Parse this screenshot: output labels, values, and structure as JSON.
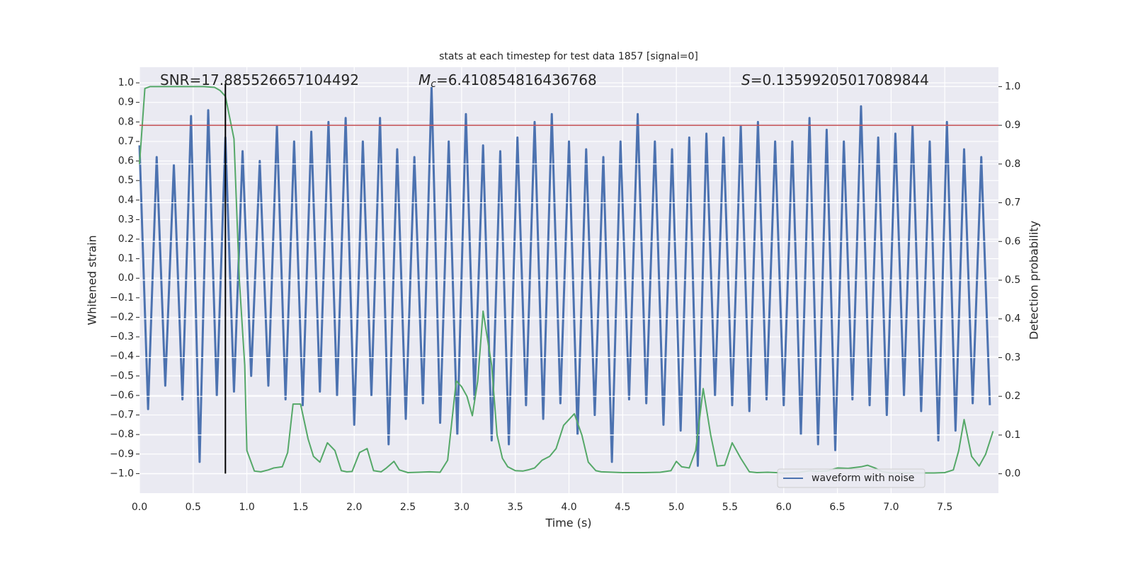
{
  "chart_data": {
    "type": "line",
    "title": "stats at each timestep for test data 1857 [signal=0]",
    "xlabel": "Time (s)",
    "ylabel": "Whitened strain",
    "y2label": "Detection probability",
    "annotations": [
      {
        "text": "SNR=17.885526657104492"
      },
      {
        "symbol": "M",
        "subscript": "c",
        "text": "=6.410854816436768"
      },
      {
        "symbol": "S",
        "text": "=0.13599205017089844"
      }
    ],
    "xlim": [
      0,
      8
    ],
    "ylim": [
      -1.1,
      1.08
    ],
    "y2lim": [
      -0.05,
      1.05
    ],
    "xticks": [
      {
        "value": 0,
        "label": "0.0"
      },
      0.5,
      {
        "value": 1,
        "label": "1.0"
      },
      1.5,
      {
        "value": 2,
        "label": "2.0"
      },
      2.5,
      {
        "value": 3,
        "label": "3.0"
      },
      3.5,
      {
        "value": 4,
        "label": "4.0"
      },
      4.5,
      {
        "value": 5,
        "label": "5.0"
      },
      5.5,
      {
        "value": 6,
        "label": "6.0"
      },
      6.5,
      {
        "value": 7,
        "label": "7.0"
      },
      7.5
    ],
    "yticks": [
      {
        "value": -1,
        "label": "−1.0"
      },
      {
        "value": -0.9,
        "label": "−0.9"
      },
      {
        "value": -0.8,
        "label": "−0.8"
      },
      {
        "value": -0.7,
        "label": "−0.7"
      },
      {
        "value": -0.6,
        "label": "−0.6"
      },
      {
        "value": -0.5,
        "label": "−0.5"
      },
      {
        "value": -0.4,
        "label": "−0.4"
      },
      {
        "value": -0.3,
        "label": "−0.3"
      },
      {
        "value": -0.2,
        "label": "−0.2"
      },
      {
        "value": -0.1,
        "label": "−0.1"
      },
      {
        "value": 0,
        "label": "0.0"
      },
      0.1,
      0.2,
      0.3,
      0.4,
      0.5,
      0.6,
      0.7,
      0.8,
      0.9,
      {
        "value": 1,
        "label": "1.0"
      }
    ],
    "y2ticks": [
      {
        "value": 0,
        "label": "0.0"
      },
      0.1,
      0.2,
      0.3,
      0.4,
      0.5,
      0.6,
      0.7,
      0.8,
      0.9,
      {
        "value": 1,
        "label": "1.0"
      }
    ],
    "grid": true,
    "legend": "lower right",
    "hlines": [
      {
        "axis": "y2",
        "value": 0.9,
        "color": "#c44e52"
      }
    ],
    "vlines": [
      {
        "value": 0.8,
        "color": "#000000"
      }
    ],
    "series": [
      {
        "name": "waveform with noise",
        "color": "#4c72b0",
        "x": [
          0,
          0.08,
          0.16,
          0.24,
          0.32,
          0.4,
          0.48,
          0.56,
          0.64,
          0.72,
          0.8,
          0.88,
          0.96,
          1.04,
          1.12,
          1.2,
          1.28,
          1.36,
          1.44,
          1.52,
          1.6,
          1.68,
          1.76,
          1.84,
          1.92,
          2,
          2.08,
          2.16,
          2.24,
          2.32,
          2.4,
          2.48,
          2.56,
          2.64,
          2.72,
          2.8,
          2.88,
          2.96,
          3.04,
          3.12,
          3.2,
          3.28,
          3.36,
          3.44,
          3.52,
          3.6,
          3.68,
          3.76,
          3.84,
          3.92,
          4,
          4.08,
          4.16,
          4.24,
          4.32,
          4.4,
          4.48,
          4.56,
          4.64,
          4.72,
          4.8,
          4.88,
          4.96,
          5.04,
          5.12,
          5.2,
          5.28,
          5.36,
          5.44,
          5.52,
          5.6,
          5.68,
          5.76,
          5.84,
          5.92,
          6,
          6.08,
          6.16,
          6.24,
          6.32,
          6.4,
          6.48,
          6.56,
          6.64,
          6.72,
          6.8,
          6.88,
          6.96,
          7.04,
          7.12,
          7.2,
          7.28,
          7.36,
          7.44,
          7.52,
          7.6,
          7.68,
          7.76,
          7.84,
          7.92
        ],
        "values": [
          0.68,
          -0.67,
          0.62,
          -0.55,
          0.58,
          -0.62,
          0.83,
          -0.94,
          0.86,
          -0.6,
          0.72,
          -0.58,
          0.65,
          -0.5,
          0.6,
          -0.55,
          0.78,
          -0.62,
          0.7,
          -0.65,
          0.75,
          -0.58,
          0.8,
          -0.6,
          0.82,
          -0.75,
          0.7,
          -0.6,
          0.82,
          -0.85,
          0.66,
          -0.72,
          0.62,
          -0.64,
          0.98,
          -0.74,
          0.7,
          -0.8,
          0.84,
          -0.62,
          0.68,
          -0.83,
          0.65,
          -0.85,
          0.72,
          -0.65,
          0.8,
          -0.72,
          0.84,
          -0.64,
          0.7,
          -0.8,
          0.66,
          -0.7,
          0.62,
          -0.94,
          0.7,
          -0.62,
          0.84,
          -0.64,
          0.7,
          -0.75,
          0.66,
          -0.78,
          0.72,
          -0.96,
          0.74,
          -0.6,
          0.72,
          -0.65,
          0.78,
          -0.68,
          0.8,
          -0.62,
          0.7,
          -0.65,
          0.7,
          -0.8,
          0.82,
          -0.85,
          0.76,
          -0.88,
          0.7,
          -0.62,
          0.88,
          -0.65,
          0.72,
          -0.7,
          0.74,
          -0.6,
          0.78,
          -0.68,
          0.7,
          -0.83,
          0.8,
          -0.78,
          0.66,
          -0.64,
          0.62,
          -0.65
        ]
      },
      {
        "color": "#55a868",
        "axis": "y2",
        "x": [
          0,
          0.05,
          0.1,
          0.2,
          0.4,
          0.6,
          0.7,
          0.75,
          0.8,
          0.88,
          0.93,
          0.98,
          1,
          1.07,
          1.13,
          1.2,
          1.25,
          1.33,
          1.38,
          1.43,
          1.5,
          1.57,
          1.62,
          1.68,
          1.75,
          1.82,
          1.88,
          1.93,
          1.98,
          2.05,
          2.12,
          2.18,
          2.25,
          2.3,
          2.37,
          2.42,
          2.5,
          2.6,
          2.7,
          2.8,
          2.87,
          2.95,
          3,
          3.05,
          3.1,
          3.15,
          3.2,
          3.28,
          3.33,
          3.38,
          3.43,
          3.5,
          3.57,
          3.62,
          3.68,
          3.75,
          3.82,
          3.88,
          3.95,
          4.05,
          4.12,
          4.18,
          4.25,
          4.3,
          4.5,
          4.7,
          4.85,
          4.95,
          5,
          5.05,
          5.12,
          5.18,
          5.25,
          5.32,
          5.38,
          5.45,
          5.52,
          5.6,
          5.68,
          5.75,
          5.85,
          6,
          6.15,
          6.25,
          6.3,
          6.4,
          6.5,
          6.6,
          6.72,
          6.78,
          6.85,
          6.92,
          7,
          7.1,
          7.25,
          7.4,
          7.5,
          7.58,
          7.63,
          7.68,
          7.75,
          7.82,
          7.88,
          7.95
        ],
        "values": [
          0.8,
          0.995,
          1,
          1,
          1,
          1,
          0.998,
          0.99,
          0.975,
          0.865,
          0.5,
          0.28,
          0.06,
          0.007,
          0.005,
          0.01,
          0.015,
          0.018,
          0.055,
          0.18,
          0.18,
          0.09,
          0.045,
          0.03,
          0.08,
          0.06,
          0.008,
          0.005,
          0.006,
          0.055,
          0.065,
          0.008,
          0.005,
          0.015,
          0.032,
          0.01,
          0.003,
          0.004,
          0.005,
          0.004,
          0.035,
          0.24,
          0.225,
          0.2,
          0.15,
          0.24,
          0.42,
          0.28,
          0.1,
          0.04,
          0.018,
          0.008,
          0.007,
          0.01,
          0.015,
          0.035,
          0.045,
          0.065,
          0.125,
          0.155,
          0.1,
          0.03,
          0.008,
          0.005,
          0.003,
          0.003,
          0.004,
          0.008,
          0.032,
          0.018,
          0.015,
          0.06,
          0.22,
          0.1,
          0.02,
          0.022,
          0.08,
          0.04,
          0.005,
          0.003,
          0.004,
          0.002,
          0.004,
          0.008,
          0.006,
          0.007,
          0.015,
          0.014,
          0.018,
          0.022,
          0.015,
          0.005,
          0.002,
          0.003,
          0.002,
          0.002,
          0.003,
          0.01,
          0.06,
          0.14,
          0.045,
          0.02,
          0.05,
          0.11
        ]
      }
    ]
  }
}
